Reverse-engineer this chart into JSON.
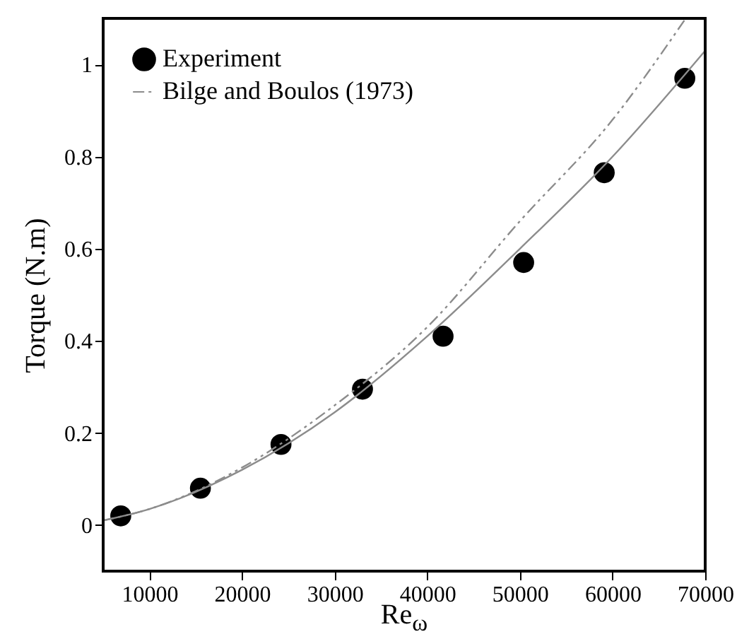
{
  "chart_data": {
    "type": "scatter",
    "xlabel": "Re$_{ω}$",
    "ylabel": "Torque (N.m)",
    "xlim": [
      5000,
      70000
    ],
    "ylim": [
      -0.1,
      1.1
    ],
    "xticks": [
      10000,
      20000,
      30000,
      40000,
      50000,
      60000,
      70000
    ],
    "yticks": [
      0,
      0.2,
      0.4,
      0.6,
      0.8,
      1
    ],
    "grid": false,
    "legend": "top left",
    "series": [
      {
        "name": "Experiment",
        "marker": "circle",
        "color": "#000000",
        "x": [
          6900,
          15500,
          24200,
          33000,
          41700,
          50400,
          59100,
          67800
        ],
        "values": [
          0.02,
          0.08,
          0.175,
          0.295,
          0.41,
          0.57,
          0.765,
          0.97
        ]
      },
      {
        "type": "line",
        "line_style": "solid",
        "color": "#8c8c8c",
        "x": [
          5000,
          10000,
          20000,
          30000,
          40000,
          50000,
          60000,
          70000
        ],
        "values": [
          0.01,
          0.035,
          0.12,
          0.245,
          0.41,
          0.6,
          0.8,
          1.03
        ]
      },
      {
        "name": "Bilge and Boulos (1973)",
        "type": "line",
        "line_style": "dashed",
        "color": "#8c8c8c",
        "x": [
          5000,
          10000,
          20000,
          30000,
          40000,
          50000,
          60000,
          67900
        ],
        "values": [
          0.01,
          0.035,
          0.125,
          0.26,
          0.43,
          0.66,
          0.88,
          1.1
        ]
      }
    ]
  }
}
